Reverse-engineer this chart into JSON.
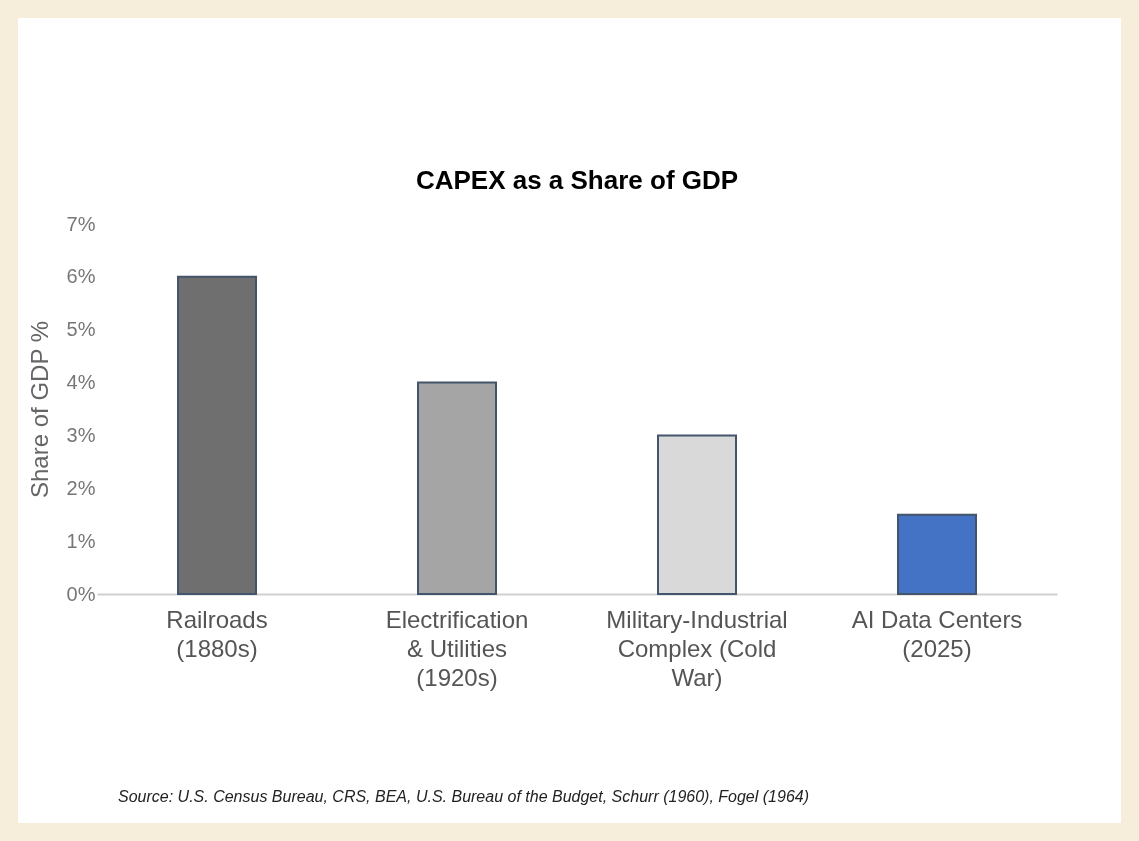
{
  "chart_data": {
    "type": "bar",
    "title": "CAPEX as a Share of GDP",
    "ylabel": "Share of GDP %",
    "categories": [
      "Railroads (1880s)",
      "Electrification & Utilities (1920s)",
      "Military-Industrial Complex (Cold War)",
      "AI Data Centers (2025)"
    ],
    "values": [
      6,
      4,
      3,
      1.5
    ],
    "colors": [
      "#6f6f6f",
      "#a5a5a5",
      "#d9d9d9",
      "#4472c4"
    ],
    "ylim": [
      0,
      7
    ],
    "yticks": [
      {
        "value": 0,
        "label": "0%"
      },
      {
        "value": 1,
        "label": "1%"
      },
      {
        "value": 2,
        "label": "2%"
      },
      {
        "value": 3,
        "label": "3%"
      },
      {
        "value": 4,
        "label": "4%"
      },
      {
        "value": 5,
        "label": "5%"
      },
      {
        "value": 6,
        "label": "6%"
      },
      {
        "value": 7,
        "label": "7%"
      }
    ],
    "grid": false,
    "annotations": [
      "Source: U.S. Census Bureau, CRS, BEA, U.S. Bureau of the Budget, Schurr (1960), Fogel (1964)"
    ]
  }
}
